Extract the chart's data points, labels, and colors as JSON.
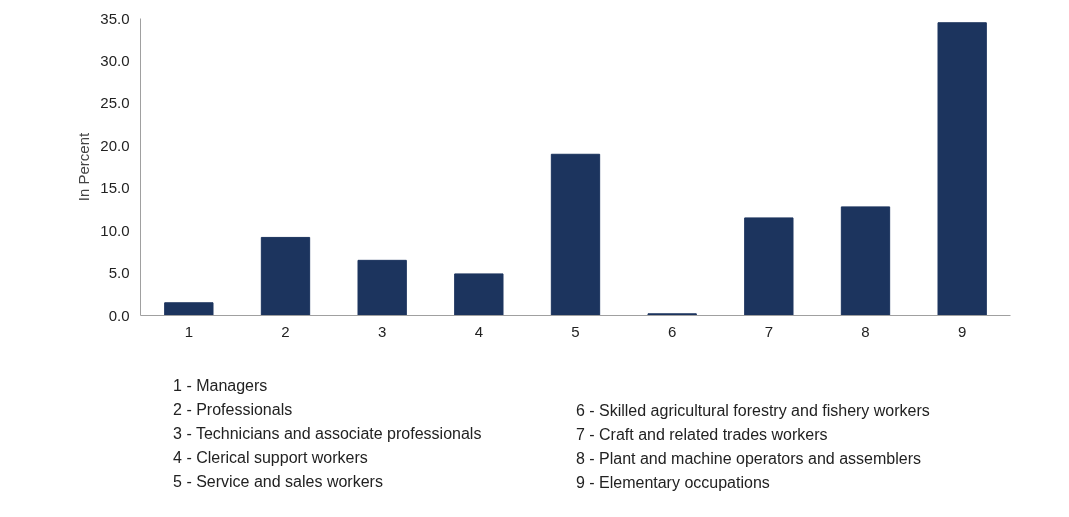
{
  "chart_data": {
    "type": "bar",
    "ylabel": "In Percent",
    "categories": [
      "1",
      "2",
      "3",
      "4",
      "5",
      "6",
      "7",
      "8",
      "9"
    ],
    "values": [
      1.5,
      9.2,
      6.5,
      4.9,
      19.0,
      0.2,
      11.5,
      12.8,
      34.5
    ],
    "color": "#1c345e",
    "ylim": [
      0,
      35
    ],
    "yticks": [
      {
        "value": 0,
        "label": "0.0"
      },
      {
        "value": 5,
        "label": "5.0"
      },
      {
        "value": 10,
        "label": "10.0"
      },
      {
        "value": 15,
        "label": "15.0"
      },
      {
        "value": 20,
        "label": "20.0"
      },
      {
        "value": 25,
        "label": "25.0"
      },
      {
        "value": 30,
        "label": "30.0"
      },
      {
        "value": 35,
        "label": "35.0"
      }
    ],
    "grid": false,
    "annotations": [
      "1 -  Managers",
      "2 - Professionals",
      "3 - Technicians and associate professionals",
      "4 - Clerical support workers",
      "5 - Service and sales workers",
      "6 - Skilled agricultural forestry and fishery workers",
      "7 - Craft and related trades workers",
      "8 - Plant and machine operators and assemblers",
      "9 - Elementary occupations"
    ]
  }
}
